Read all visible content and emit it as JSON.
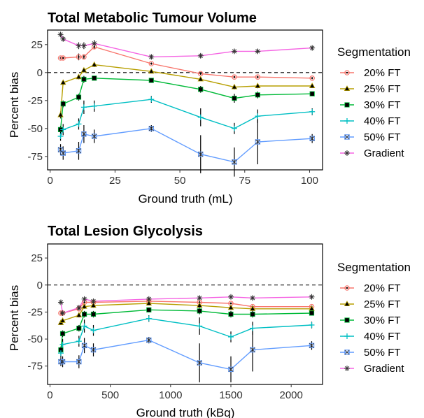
{
  "chart_data": [
    {
      "type": "line",
      "title": "Total Metabolic Tumour Volume",
      "xlabel": "Ground truth (mL)",
      "ylabel": "Percent bias",
      "xlim": [
        -1,
        105
      ],
      "ylim": [
        -87,
        38
      ],
      "xticks": [
        0,
        25,
        50,
        75,
        100
      ],
      "yticks": [
        25,
        0,
        -25,
        -50,
        -75
      ],
      "reference_line": 0,
      "legend": {
        "title": "Segmentation",
        "placement": "right"
      },
      "x": [
        4,
        5,
        11,
        13,
        17,
        39,
        58,
        71,
        80,
        101
      ],
      "series": [
        {
          "name": "20% FT",
          "color": "#F8766D",
          "marker": "circle-plus",
          "values": [
            13,
            13,
            14,
            14,
            23,
            8,
            -1,
            -4,
            -4,
            -5
          ],
          "errors": [
            1,
            1,
            3,
            2,
            2,
            1,
            1,
            1,
            1,
            1
          ]
        },
        {
          "name": "25% FT",
          "color": "#B79F00",
          "marker": "triangle",
          "values": [
            -38,
            -9,
            -4,
            2,
            7,
            1,
            -6,
            -13,
            -12,
            -12
          ],
          "errors": [
            3,
            2,
            2,
            2,
            2,
            1,
            1,
            2,
            2,
            1
          ]
        },
        {
          "name": "30% FT",
          "color": "#00BA38",
          "marker": "square-filled",
          "values": [
            -51,
            -28,
            -22,
            -6,
            -5,
            -7,
            -15,
            -23,
            -20,
            -19
          ],
          "errors": [
            3,
            3,
            3,
            3,
            2,
            2,
            3,
            4,
            3,
            2
          ]
        },
        {
          "name": "40% FT",
          "color": "#00BFC4",
          "marker": "plus",
          "values": [
            -57,
            -51,
            -46,
            -31,
            -30,
            -24,
            -40,
            -50,
            -39,
            -35
          ],
          "errors": [
            4,
            5,
            5,
            6,
            5,
            3,
            8,
            5,
            6,
            3
          ]
        },
        {
          "name": "50% FT",
          "color": "#619CFF",
          "marker": "square-cross",
          "values": [
            -69,
            -72,
            -70,
            -55,
            -57,
            -50,
            -73,
            -80,
            -62,
            -59
          ],
          "errors": [
            5,
            6,
            8,
            8,
            6,
            3,
            17,
            13,
            20,
            4
          ]
        },
        {
          "name": "Gradient",
          "color": "#F564E3",
          "marker": "asterisk",
          "values": [
            34,
            30,
            24,
            24,
            26,
            14,
            15,
            19,
            19,
            22
          ],
          "errors": [
            2,
            2,
            3,
            3,
            3,
            2,
            2,
            2,
            2,
            2
          ]
        }
      ]
    },
    {
      "type": "line",
      "title": "Total Lesion Glycolysis",
      "xlabel": "Ground truth (kBq)",
      "ylabel": "Percent bias",
      "xlim": [
        -20,
        2260
      ],
      "ylim": [
        -92,
        38
      ],
      "xticks": [
        0,
        500,
        1000,
        1500,
        2000
      ],
      "yticks": [
        25,
        0,
        -25,
        -50,
        -75
      ],
      "reference_line": 0,
      "legend": {
        "title": "Segmentation",
        "placement": "right"
      },
      "x": [
        90,
        105,
        240,
        285,
        360,
        820,
        1240,
        1500,
        1680,
        2170
      ],
      "series": [
        {
          "name": "20% FT",
          "color": "#F8766D",
          "marker": "circle-plus",
          "values": [
            -26,
            -26,
            -22,
            -16,
            -16,
            -15,
            -16,
            -17,
            -20,
            -20
          ],
          "errors": [
            1,
            1,
            1,
            1,
            1,
            1,
            1,
            1,
            1,
            1
          ]
        },
        {
          "name": "25% FT",
          "color": "#B79F00",
          "marker": "triangle",
          "values": [
            -35,
            -33,
            -28,
            -20,
            -19,
            -17,
            -19,
            -21,
            -22,
            -22
          ],
          "errors": [
            2,
            2,
            2,
            2,
            2,
            1,
            1,
            2,
            2,
            1
          ]
        },
        {
          "name": "30% FT",
          "color": "#00BA38",
          "marker": "square-filled",
          "values": [
            -60,
            -45,
            -40,
            -27,
            -27,
            -23,
            -24,
            -27,
            -27,
            -26
          ],
          "errors": [
            3,
            3,
            3,
            3,
            3,
            2,
            3,
            3,
            3,
            2
          ]
        },
        {
          "name": "40% FT",
          "color": "#00BFC4",
          "marker": "plus",
          "values": [
            -63,
            -55,
            -52,
            -38,
            -42,
            -31,
            -38,
            -48,
            -40,
            -37
          ],
          "errors": [
            4,
            5,
            5,
            6,
            5,
            3,
            8,
            5,
            6,
            3
          ]
        },
        {
          "name": "50% FT",
          "color": "#619CFF",
          "marker": "square-cross",
          "values": [
            -71,
            -71,
            -71,
            -56,
            -60,
            -51,
            -72,
            -78,
            -60,
            -56
          ],
          "errors": [
            4,
            5,
            6,
            7,
            6,
            3,
            18,
            12,
            20,
            4
          ]
        },
        {
          "name": "Gradient",
          "color": "#F564E3",
          "marker": "asterisk",
          "values": [
            -16,
            -26,
            -21,
            -13,
            -15,
            -13,
            -12,
            -11,
            -12,
            -11
          ],
          "errors": [
            2,
            2,
            2,
            2,
            2,
            2,
            2,
            2,
            2,
            2
          ]
        }
      ]
    }
  ]
}
